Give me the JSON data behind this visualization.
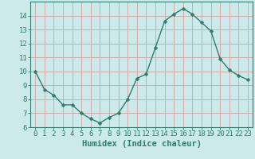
{
  "x": [
    0,
    1,
    2,
    3,
    4,
    5,
    6,
    7,
    8,
    9,
    10,
    11,
    12,
    13,
    14,
    15,
    16,
    17,
    18,
    19,
    20,
    21,
    22,
    23
  ],
  "y": [
    10.0,
    8.7,
    8.3,
    7.6,
    7.6,
    7.0,
    6.6,
    6.3,
    6.7,
    7.0,
    8.0,
    9.5,
    9.8,
    11.7,
    13.6,
    14.1,
    14.5,
    14.1,
    13.5,
    12.9,
    10.9,
    10.1,
    9.7,
    9.4
  ],
  "line_color": "#2e7d6e",
  "marker": "D",
  "marker_size": 2.5,
  "bg_color": "#cceaea",
  "grid_color_minor": "#d4a0a0",
  "xlabel": "Humidex (Indice chaleur)",
  "ylim": [
    6,
    15
  ],
  "xlim": [
    -0.5,
    23.5
  ],
  "yticks": [
    6,
    7,
    8,
    9,
    10,
    11,
    12,
    13,
    14
  ],
  "xticks": [
    0,
    1,
    2,
    3,
    4,
    5,
    6,
    7,
    8,
    9,
    10,
    11,
    12,
    13,
    14,
    15,
    16,
    17,
    18,
    19,
    20,
    21,
    22,
    23
  ],
  "tick_label_color": "#2e7d6e",
  "axis_color": "#2e7d6e",
  "label_fontsize": 7.5,
  "tick_fontsize": 6.5
}
